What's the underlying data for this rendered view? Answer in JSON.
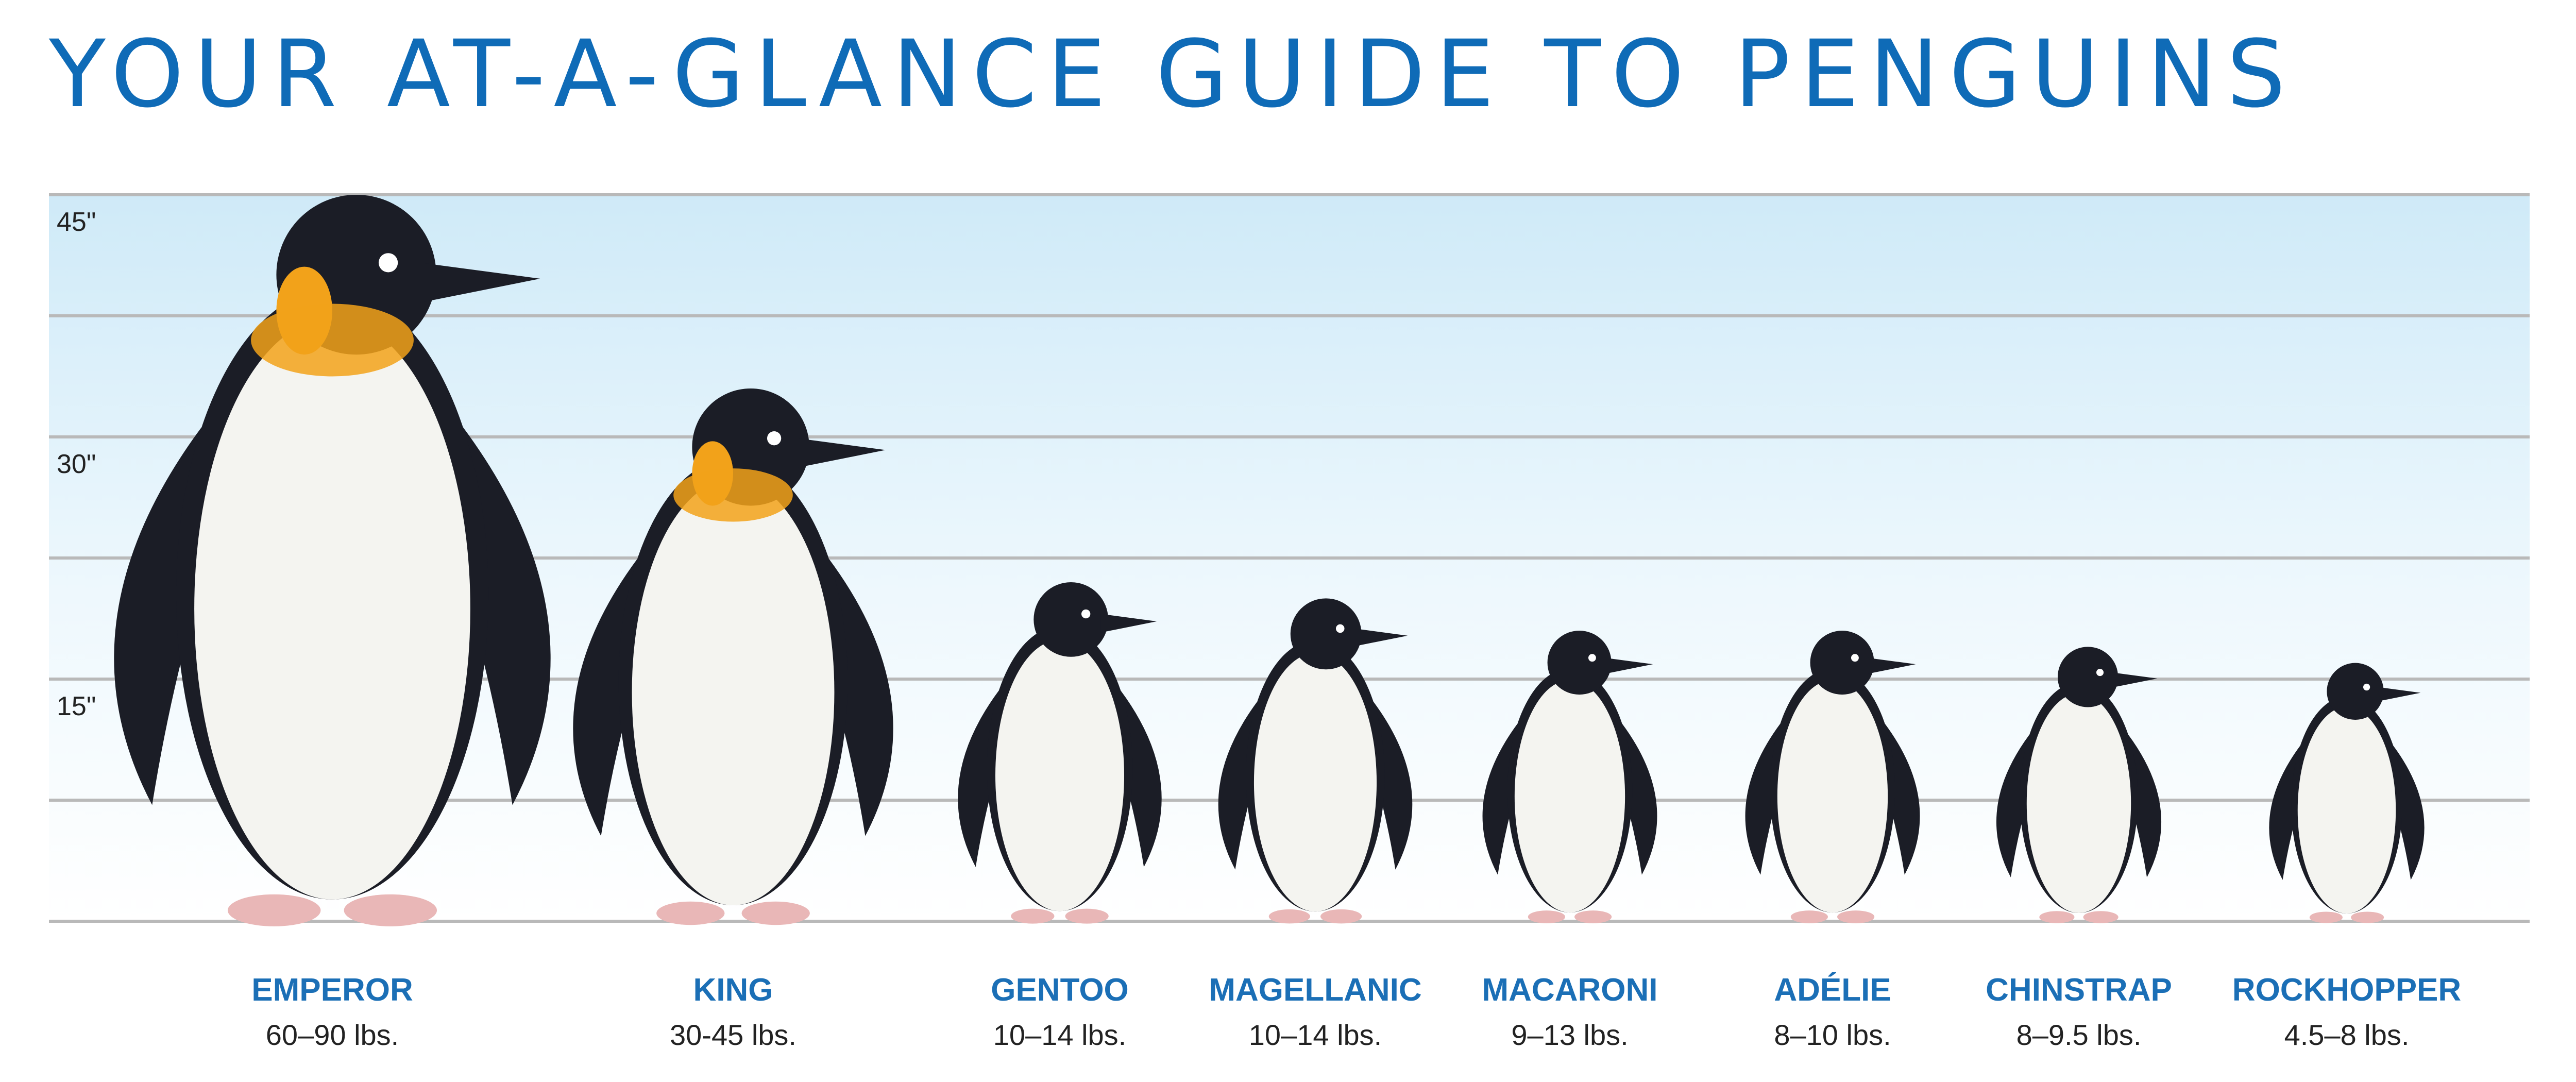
{
  "title": "YOUR AT-A-GLANCE GUIDE TO PENGUINS",
  "colors": {
    "title": "#0f6bb7",
    "label": "#1b6fb6",
    "text": "#222222",
    "gridline": "#b9b9b9",
    "band_top": "#cfeaf8",
    "band_bottom": "#ffffff",
    "penguin_black": "#1b1d26",
    "penguin_white": "#f4f4f0",
    "king_orange": "#f2a21a",
    "feet_pink": "#e9b7b7"
  },
  "chart_data": {
    "type": "bar",
    "ylim": [
      0,
      45
    ],
    "yticks": [
      {
        "value": 45,
        "label": "45\""
      },
      {
        "value": 30,
        "label": "30\""
      },
      {
        "value": 15,
        "label": "15\""
      }
    ],
    "gridlines": [
      0,
      7.5,
      15,
      22.5,
      30,
      37.5,
      45
    ],
    "categories": [
      "EMPEROR",
      "KING",
      "GENTOO",
      "MAGELLANIC",
      "MACARONI",
      "ADÉLIE",
      "CHINSTRAP",
      "ROCKHOPPER"
    ],
    "values": [
      45,
      33,
      21,
      20,
      18,
      18,
      17,
      16
    ],
    "weights": [
      "60–90 lbs.",
      "30-45 lbs.",
      "10–14 lbs.",
      "10–14 lbs.",
      "9–13 lbs.",
      "8–10 lbs.",
      "8–9.5 lbs.",
      "4.5–8 lbs."
    ],
    "icons": [
      "emperor-penguin-icon",
      "king-penguin-icon",
      "gentoo-penguin-icon",
      "magellanic-penguin-icon",
      "macaroni-penguin-icon",
      "adelie-penguin-icon",
      "chinstrap-penguin-icon",
      "rockhopper-penguin-icon"
    ]
  }
}
